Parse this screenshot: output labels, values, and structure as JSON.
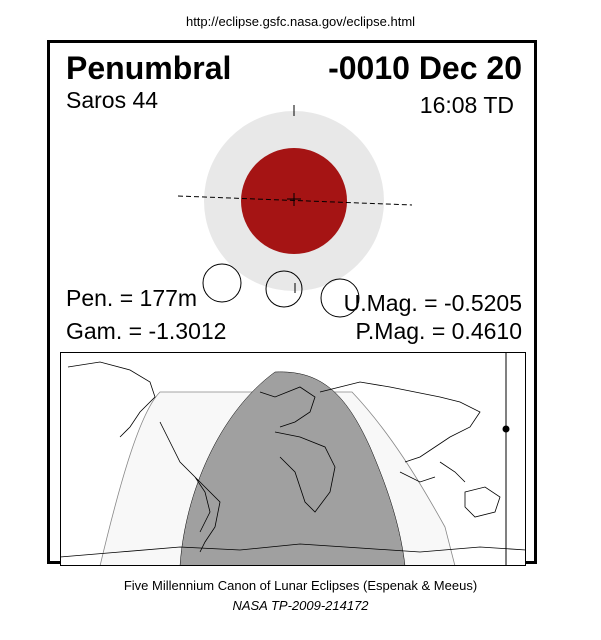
{
  "header": {
    "url": "http://eclipse.gsfc.nasa.gov/eclipse.html"
  },
  "eclipse": {
    "type": "Penumbral",
    "date": "-0010 Dec 20",
    "saros": "Saros  44",
    "time": "16:08 TD",
    "pen_duration": "Pen. = 177m",
    "gamma": "Gam. = -1.3012",
    "umbral_magnitude": "U.Mag. = -0.5205",
    "penumbral_magnitude": "P.Mag. = 0.4610"
  },
  "colors": {
    "penumbra": "#e8e8e8",
    "moon": "#a51414",
    "night_region": "#a0a0a0",
    "penumbral_region": "#f8f8f8"
  },
  "footer": {
    "line1": "Five Millennium Canon of Lunar Eclipses (Espenak & Meeus)",
    "line2": "NASA TP-2009-214172"
  }
}
